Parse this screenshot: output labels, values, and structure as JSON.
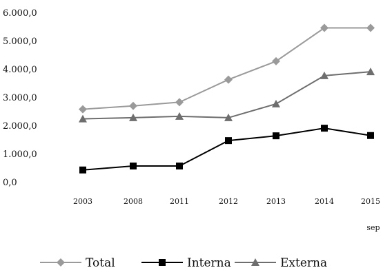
{
  "chart_data": {
    "type": "line",
    "categories": [
      "2003",
      "2008",
      "2011",
      "2012",
      "2013",
      "2014",
      "2015"
    ],
    "x_extra_note": "sep",
    "ylim": [
      0,
      6000
    ],
    "yticks": [
      "0,0",
      "1.000,0",
      "2.000,0",
      "3.000,0",
      "4.000,0",
      "5.000,0",
      "6.000,0"
    ],
    "grid": false,
    "legend_position": "bottom",
    "series": [
      {
        "name": "Total",
        "values": [
          2570,
          2690,
          2820,
          3620,
          4270,
          5450,
          5450
        ],
        "color": "#9a9a9a",
        "marker": "diamond"
      },
      {
        "name": "Interna",
        "values": [
          420,
          560,
          560,
          1460,
          1630,
          1900,
          1640
        ],
        "color": "#000000",
        "marker": "square"
      },
      {
        "name": "Externa",
        "values": [
          2230,
          2270,
          2320,
          2270,
          2760,
          3760,
          3900
        ],
        "color": "#6e6e6e",
        "marker": "triangle"
      }
    ]
  }
}
